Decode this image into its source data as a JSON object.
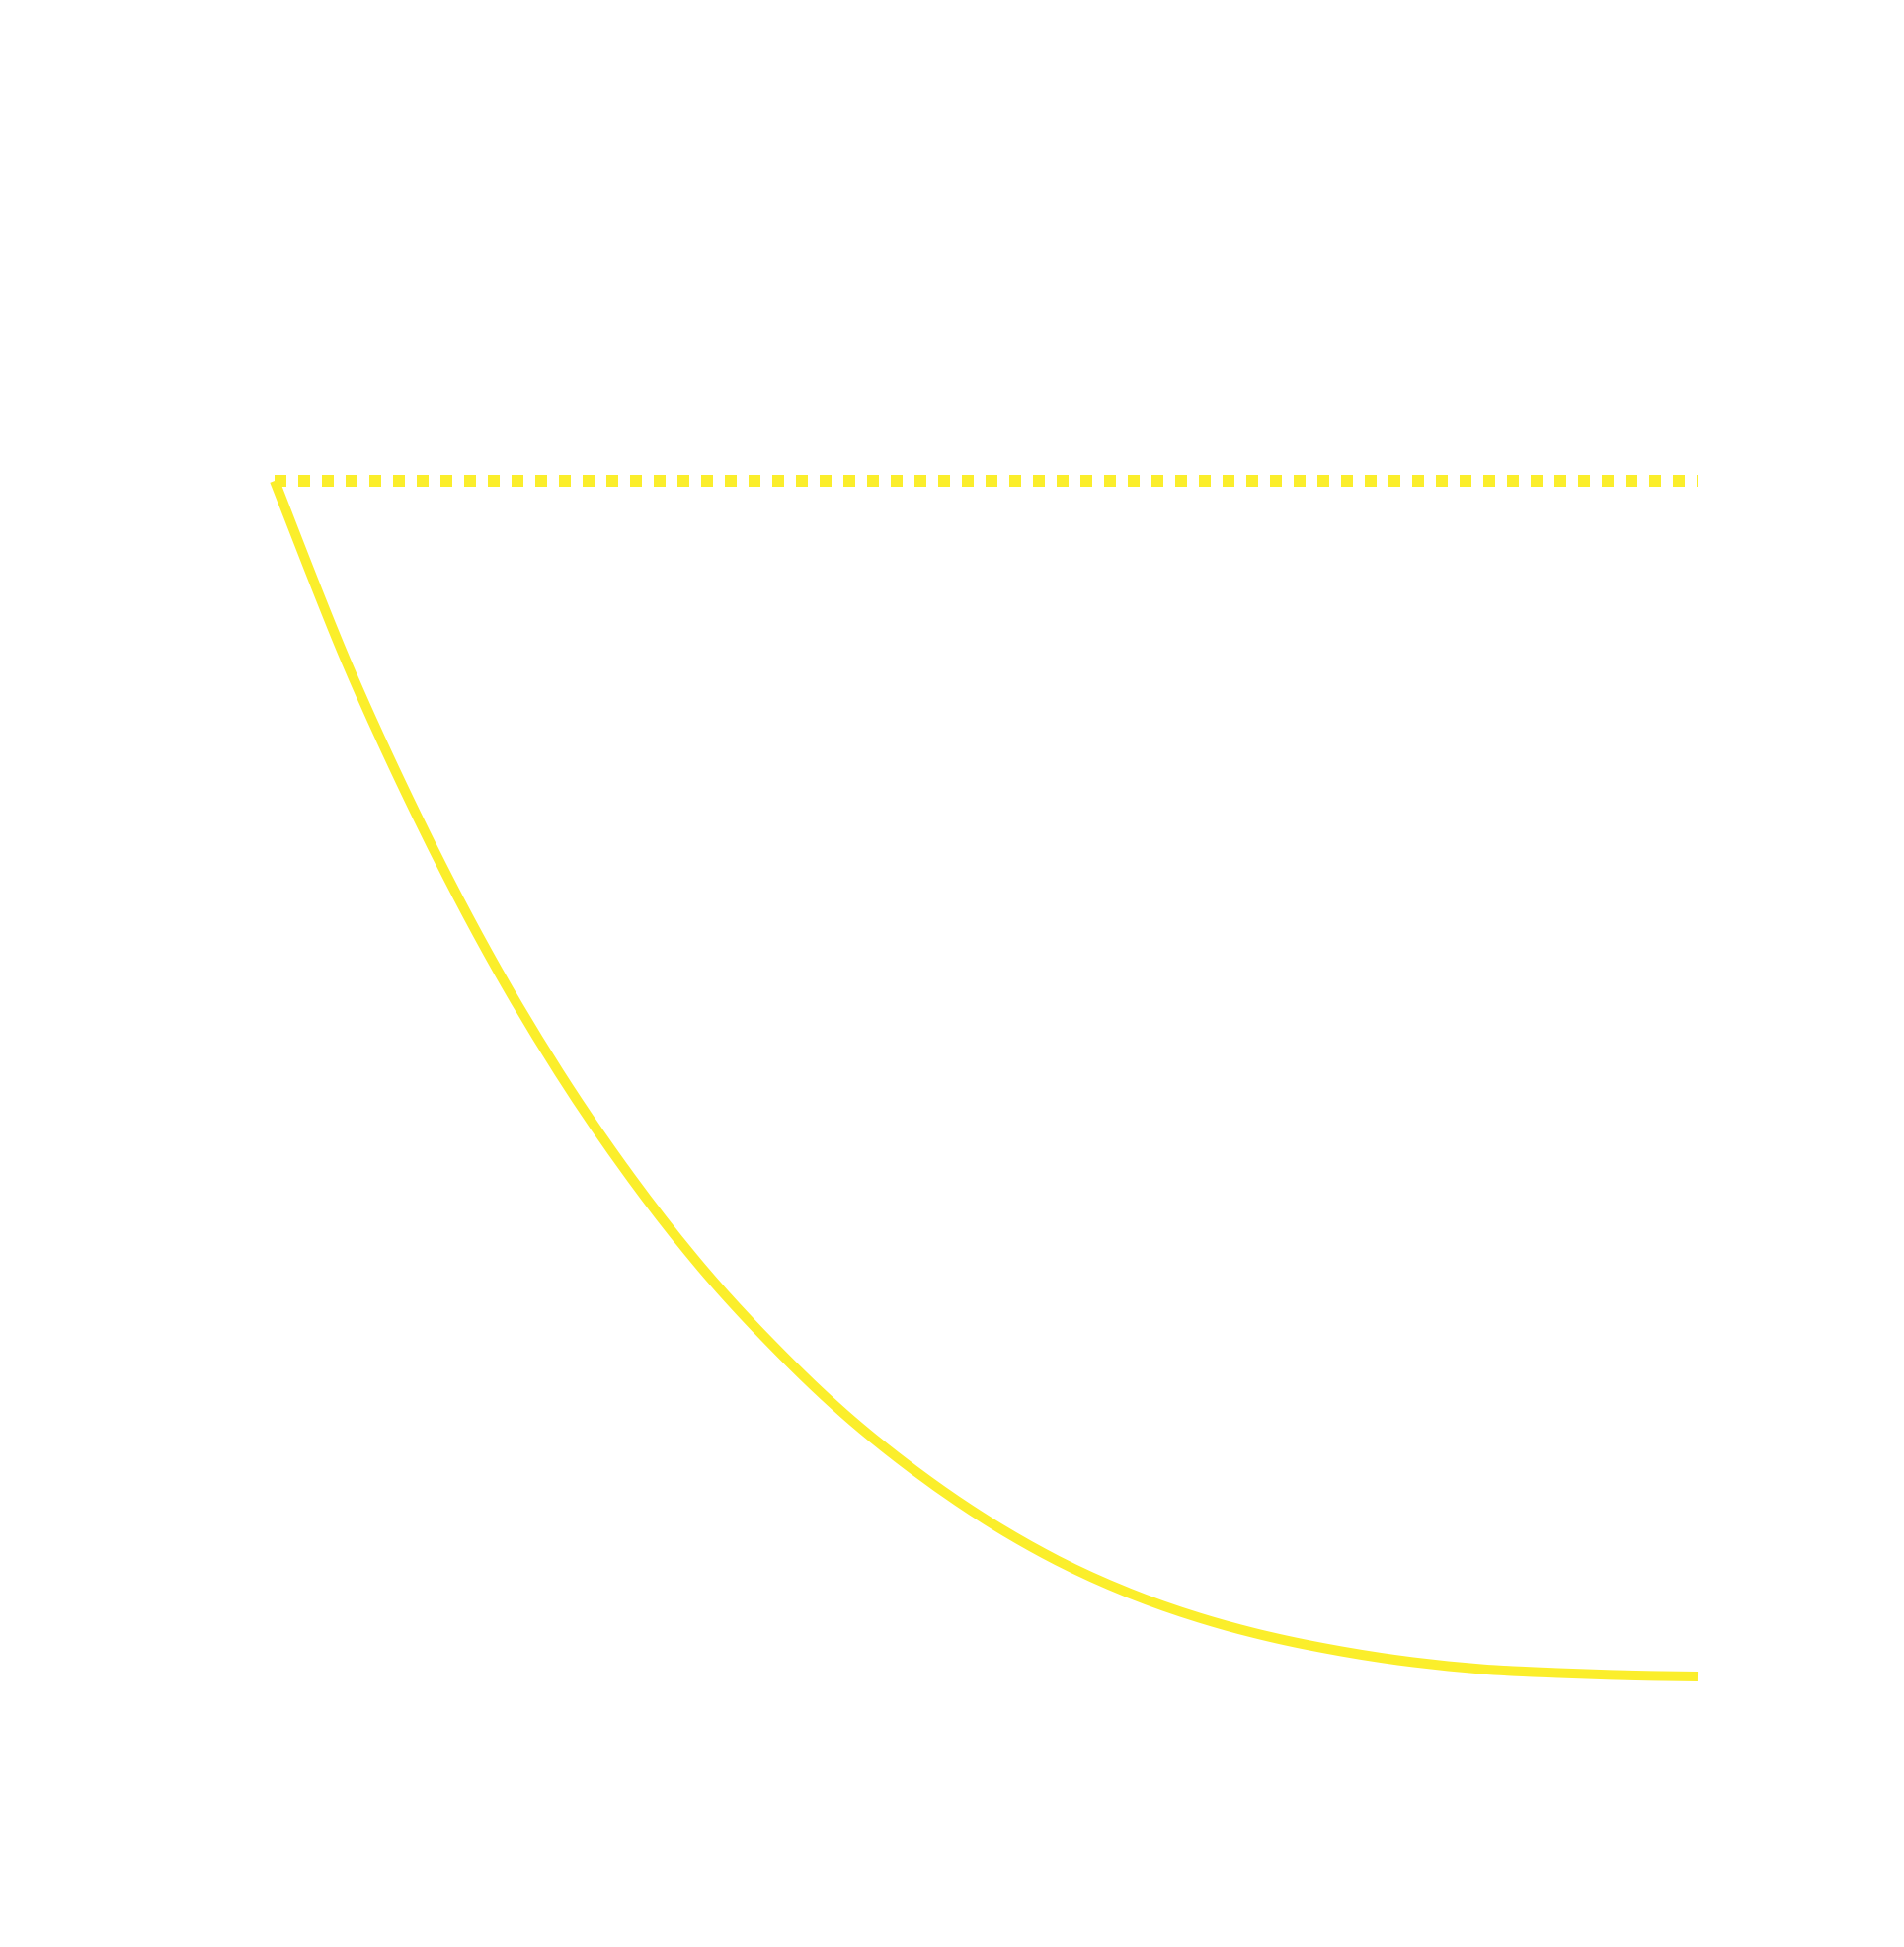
{
  "chart_data": {
    "type": "line",
    "title": "",
    "xlabel": "",
    "ylabel": "",
    "grid": false,
    "legend": "none",
    "xlim": [
      0,
      1
    ],
    "ylim": [
      0,
      1
    ],
    "series": [
      {
        "color": "#fbee2b",
        "style": "dotted",
        "x": [
          0,
          1
        ],
        "y": [
          1,
          1
        ]
      },
      {
        "color": "#fbee2b",
        "style": "solid",
        "x": [
          0,
          0.05,
          0.1,
          0.15,
          0.2,
          0.25,
          0.3,
          0.35,
          0.4,
          0.45,
          0.5,
          0.55,
          0.6,
          0.65,
          0.7,
          0.75,
          0.8,
          0.85,
          0.9,
          0.95,
          1
        ],
        "y": [
          1,
          0.85,
          0.72,
          0.605,
          0.505,
          0.418,
          0.342,
          0.277,
          0.22,
          0.172,
          0.131,
          0.097,
          0.07,
          0.049,
          0.033,
          0.021,
          0.012,
          0.006,
          0.003,
          0.001,
          0
        ]
      }
    ]
  }
}
